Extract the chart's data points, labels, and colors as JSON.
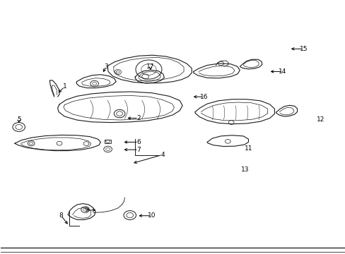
{
  "bg_color": "#ffffff",
  "fig_width": 4.89,
  "fig_height": 3.6,
  "dpi": 100,
  "label_config": {
    "1": {
      "lpos": [
        0.185,
        0.66
      ],
      "tpos": [
        0.163,
        0.63
      ]
    },
    "2": {
      "lpos": [
        0.4,
        0.535
      ],
      "tpos": [
        0.362,
        0.535
      ]
    },
    "3": {
      "lpos": [
        0.305,
        0.74
      ],
      "tpos": [
        0.295,
        0.71
      ]
    },
    "4": {
      "lpos": [
        0.47,
        0.39
      ],
      "tpos": [
        0.38,
        0.355
      ]
    },
    "5": {
      "lpos": [
        0.052,
        0.53
      ],
      "tpos": [
        0.052,
        0.508
      ]
    },
    "6": {
      "lpos": [
        0.4,
        0.44
      ],
      "tpos": [
        0.352,
        0.44
      ]
    },
    "7": {
      "lpos": [
        0.4,
        0.41
      ],
      "tpos": [
        0.352,
        0.41
      ]
    },
    "8": {
      "lpos": [
        0.175,
        0.148
      ],
      "tpos": [
        0.198,
        0.108
      ]
    },
    "9": {
      "lpos": [
        0.248,
        0.17
      ],
      "tpos": [
        0.282,
        0.17
      ]
    },
    "10": {
      "lpos": [
        0.438,
        0.148
      ],
      "tpos": [
        0.395,
        0.148
      ]
    },
    "11": {
      "lpos": [
        0.72,
        0.415
      ],
      "tpos": [
        0.72,
        0.415
      ]
    },
    "12": {
      "lpos": [
        0.93,
        0.53
      ],
      "tpos": [
        0.93,
        0.53
      ]
    },
    "13": {
      "lpos": [
        0.71,
        0.33
      ],
      "tpos": [
        0.71,
        0.33
      ]
    },
    "14": {
      "lpos": [
        0.82,
        0.72
      ],
      "tpos": [
        0.778,
        0.72
      ]
    },
    "15": {
      "lpos": [
        0.88,
        0.81
      ],
      "tpos": [
        0.838,
        0.81
      ]
    },
    "16": {
      "lpos": [
        0.59,
        0.62
      ],
      "tpos": [
        0.554,
        0.62
      ]
    },
    "17": {
      "lpos": [
        0.435,
        0.74
      ],
      "tpos": [
        0.435,
        0.718
      ]
    }
  },
  "color": "#1a1a1a"
}
